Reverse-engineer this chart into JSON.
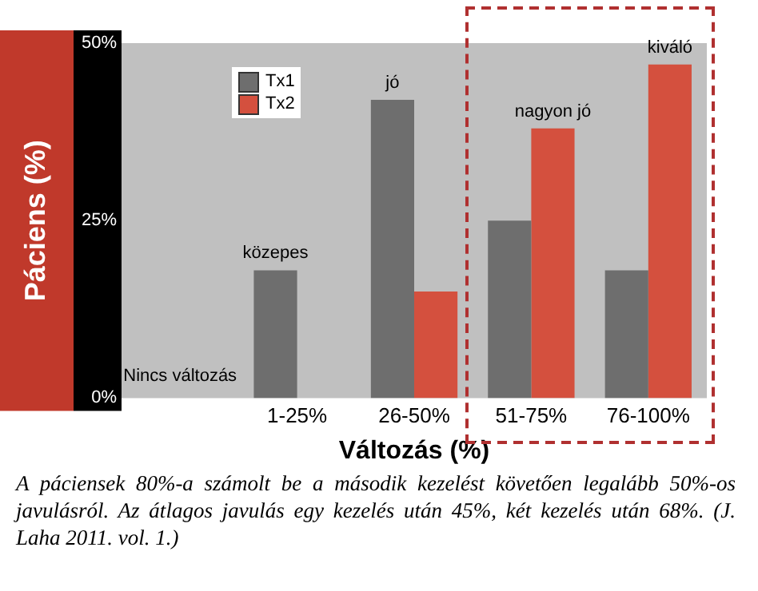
{
  "chart_data": {
    "type": "bar",
    "xlabel": "Változás (%)",
    "ylabel": "Páciens (%)",
    "categories": [
      null,
      "1-25%",
      "26-50%",
      "51-75%",
      "76-100%"
    ],
    "series": [
      {
        "name": "Tx1",
        "color": "#6e6e6e",
        "values": [
          0,
          18,
          42,
          25,
          18
        ]
      },
      {
        "name": "Tx2",
        "color": "#d4503e",
        "values": [
          0,
          0,
          15,
          38,
          47
        ]
      }
    ],
    "ylim": [
      0,
      50
    ],
    "yticks": [
      {
        "value": 0,
        "label": "0%"
      },
      {
        "value": 25,
        "label": "25%"
      },
      {
        "value": 50,
        "label": "50%"
      }
    ],
    "grid": false,
    "legend": "top left",
    "annotations": [
      "Nincs változás",
      {
        "text": "közepes",
        "x": "1-25%",
        "y": 18
      },
      {
        "text": "jó",
        "x": "26-50%",
        "y": 42
      },
      {
        "text": "nagyon jó",
        "x": "51-75%",
        "y": 38
      },
      {
        "text": "kiváló",
        "x": "76-100%",
        "y": 47
      },
      "A páciensek 80%-a számolt be a második kezelést követően legalább 50%-os javulásról. Az átlagos javulás egy kezelés után 45%, két kezelés után 68%. (J. Laha 2011. vol. 1.)"
    ]
  }
}
